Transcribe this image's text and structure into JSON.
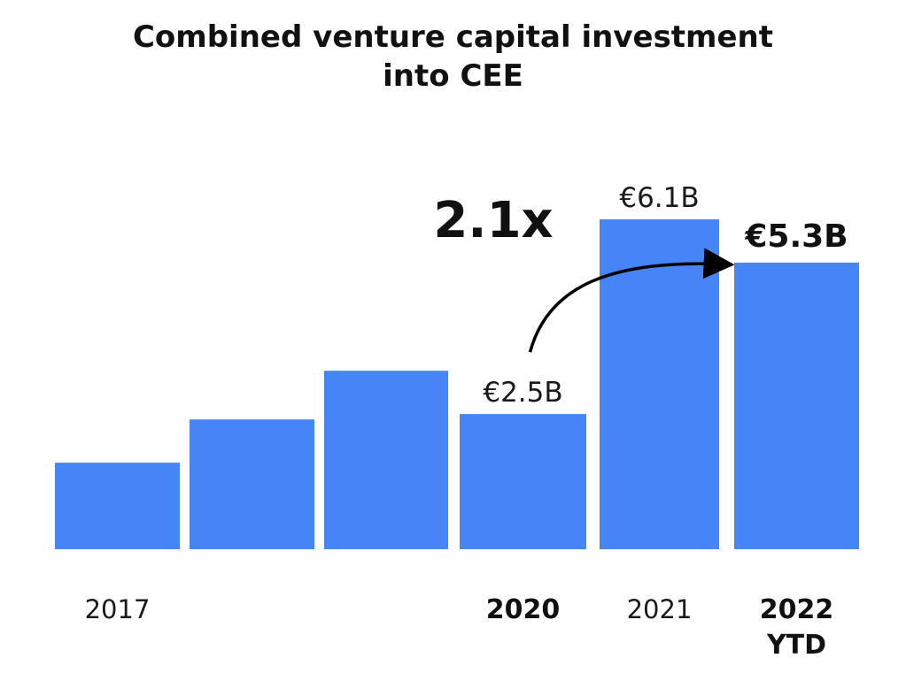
{
  "chart_data": {
    "type": "bar",
    "title_lines": [
      "Combined venture capital investment",
      "into CEE"
    ],
    "categories": [
      "2017",
      "",
      "",
      "2020",
      "2021",
      "2022 YTD"
    ],
    "x_tick_labels": [
      {
        "lines": [
          "2017"
        ],
        "bold": false
      },
      {
        "lines": [],
        "bold": false
      },
      {
        "lines": [],
        "bold": false
      },
      {
        "lines": [
          "2020"
        ],
        "bold": true
      },
      {
        "lines": [
          "2021"
        ],
        "bold": false
      },
      {
        "lines": [
          "2022",
          "YTD"
        ],
        "bold": true
      }
    ],
    "series": [
      {
        "values": [
          1.6,
          2.4,
          3.3,
          2.5,
          6.1,
          5.3
        ]
      }
    ],
    "data_labels": [
      "",
      "",
      "",
      "€2.5B",
      "€6.1B",
      "€5.3B"
    ],
    "data_label_bold": [
      false,
      false,
      false,
      false,
      false,
      true
    ],
    "ylim": [
      0,
      6.1
    ],
    "annotation": {
      "text": "2.1x",
      "arrow_from_bar": 3,
      "arrow_to_bar": 5
    },
    "grid": false,
    "bar_color": "#4585f5",
    "arrow_color": "#000000"
  }
}
